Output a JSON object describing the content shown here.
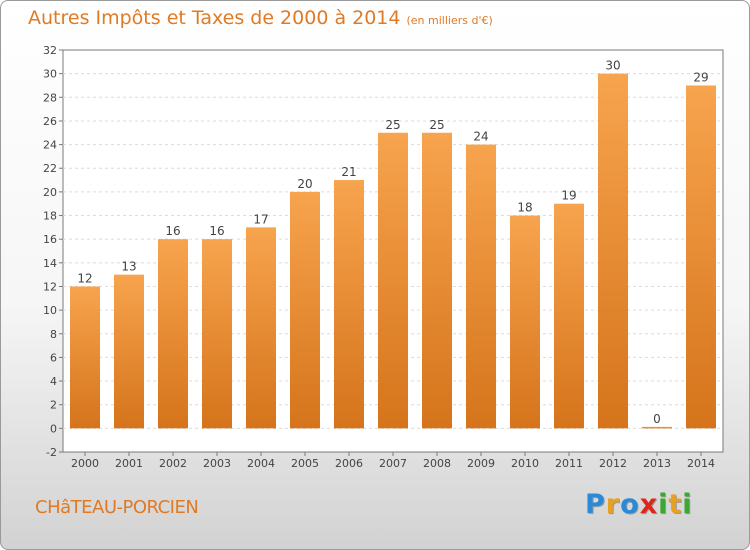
{
  "title": "Autres Impôts et Taxes de 2000 à 2014",
  "title_unit": "(en milliers d'€)",
  "location": "CHâTEAU-PORCIEN",
  "brand": {
    "letters": [
      {
        "ch": "P",
        "color": "#2a8ad8"
      },
      {
        "ch": "r",
        "color": "#e8a020"
      },
      {
        "ch": "o",
        "color": "#2a8ad8"
      },
      {
        "ch": "x",
        "color": "#e0251b"
      },
      {
        "ch": "i",
        "color": "#3aa832"
      },
      {
        "ch": "t",
        "color": "#e8a020"
      },
      {
        "ch": "i",
        "color": "#3aa832"
      }
    ]
  },
  "chart_data": {
    "type": "bar",
    "categories": [
      "2000",
      "2001",
      "2002",
      "2003",
      "2004",
      "2005",
      "2006",
      "2007",
      "2008",
      "2009",
      "2010",
      "2011",
      "2012",
      "2013",
      "2014"
    ],
    "values": [
      12,
      13,
      16,
      16,
      17,
      20,
      21,
      25,
      25,
      24,
      18,
      19,
      30,
      0,
      29
    ],
    "data_labels": [
      "12",
      "13",
      "16",
      "16",
      "17",
      "20",
      "21",
      "25",
      "25",
      "24",
      "18",
      "19",
      "30",
      "0",
      "29"
    ],
    "title": "Autres Impôts et Taxes de 2000 à 2014",
    "xlabel": "",
    "ylabel": "",
    "ylim": [
      -2,
      32
    ],
    "yticks": [
      -2,
      0,
      2,
      4,
      6,
      8,
      10,
      12,
      14,
      16,
      18,
      20,
      22,
      24,
      26,
      28,
      30,
      32
    ],
    "grid": true,
    "legend": "none",
    "bar_color_top": "#f7a44e",
    "bar_color_bottom": "#d5741b"
  }
}
